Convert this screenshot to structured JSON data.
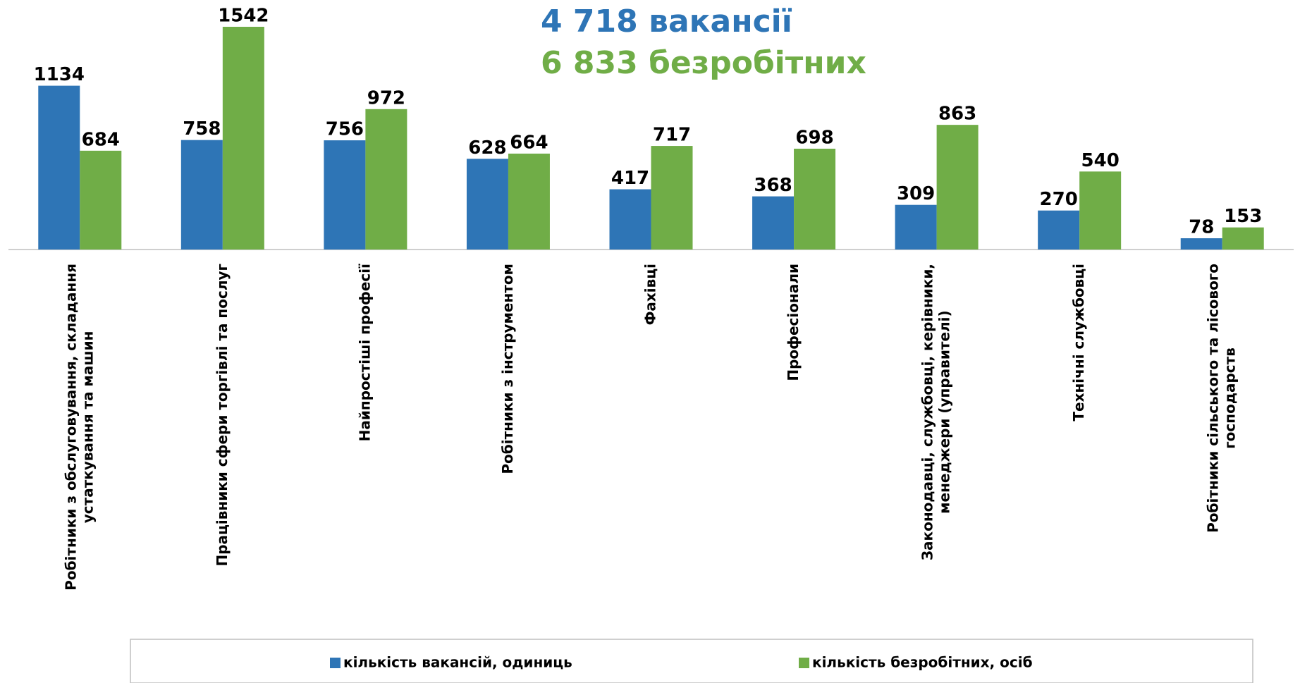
{
  "chart_data": {
    "type": "bar",
    "annotations": [
      "4 718  вакансії",
      "6 833 безробітних"
    ],
    "categories": [
      "Робітники з обслуговування, складання\nустаткування та машин",
      "Працівники сфери торгівлі та послуг",
      "Найпростіші професії",
      "Робітники з інструментом",
      "Фахівці",
      "Професіонали",
      "Законодавці, службовці, керівники,\nменеджери (управителі)",
      "Технічні службовці",
      "Робітники сільського та лісового\nгосподарств"
    ],
    "series": [
      {
        "name": "кількість вакансій, одиниць",
        "color": "#2e75b6",
        "values": [
          1134,
          758,
          756,
          628,
          417,
          368,
          309,
          270,
          78
        ]
      },
      {
        "name": "кількість безробітних, осіб",
        "color": "#70ad47",
        "values": [
          684,
          1542,
          972,
          664,
          717,
          698,
          863,
          540,
          153
        ]
      }
    ],
    "legend": "bottom"
  }
}
